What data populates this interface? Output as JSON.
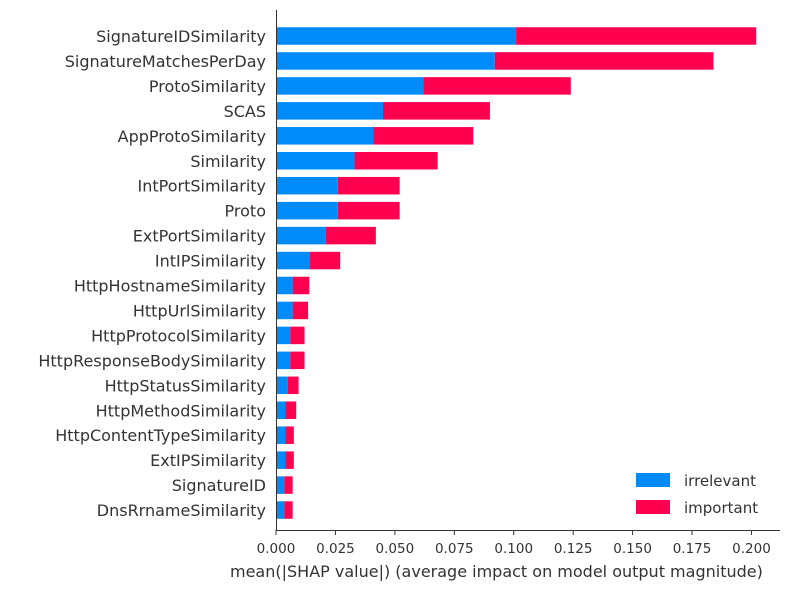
{
  "chart_data": {
    "type": "bar",
    "stacked": true,
    "orientation": "horizontal",
    "categories": [
      "SignatureIDSimilarity",
      "SignatureMatchesPerDay",
      "ProtoSimilarity",
      "SCAS",
      "AppProtoSimilarity",
      "Similarity",
      "IntPortSimilarity",
      "Proto",
      "ExtPortSimilarity",
      "IntIPSimilarity",
      "HttpHostnameSimilarity",
      "HttpUrlSimilarity",
      "HttpProtocolSimilarity",
      "HttpResponseBodySimilarity",
      "HttpStatusSimilarity",
      "HttpMethodSimilarity",
      "HttpContentTypeSimilarity",
      "ExtIPSimilarity",
      "SignatureID",
      "DnsRrnameSimilarity"
    ],
    "series": [
      {
        "name": "irrelevant",
        "color": "#008bfb",
        "values": [
          0.101,
          0.092,
          0.062,
          0.045,
          0.041,
          0.033,
          0.026,
          0.026,
          0.021,
          0.014,
          0.007,
          0.007,
          0.006,
          0.006,
          0.005,
          0.004,
          0.004,
          0.004,
          0.0035,
          0.0035
        ]
      },
      {
        "name": "important",
        "color": "#ff0051",
        "values": [
          0.101,
          0.092,
          0.062,
          0.045,
          0.042,
          0.035,
          0.026,
          0.026,
          0.021,
          0.013,
          0.007,
          0.0065,
          0.006,
          0.006,
          0.0045,
          0.0045,
          0.0035,
          0.0035,
          0.0035,
          0.0035
        ]
      }
    ],
    "xlabel": "mean(|SHAP value|) (average impact on model output magnitude)",
    "ylabel": "",
    "xlim": [
      0,
      0.212
    ],
    "xticks": [
      "0.000",
      "0.025",
      "0.050",
      "0.075",
      "0.100",
      "0.125",
      "0.150",
      "0.175",
      "0.200"
    ],
    "grid": false,
    "legend_position": "bottom-right"
  }
}
